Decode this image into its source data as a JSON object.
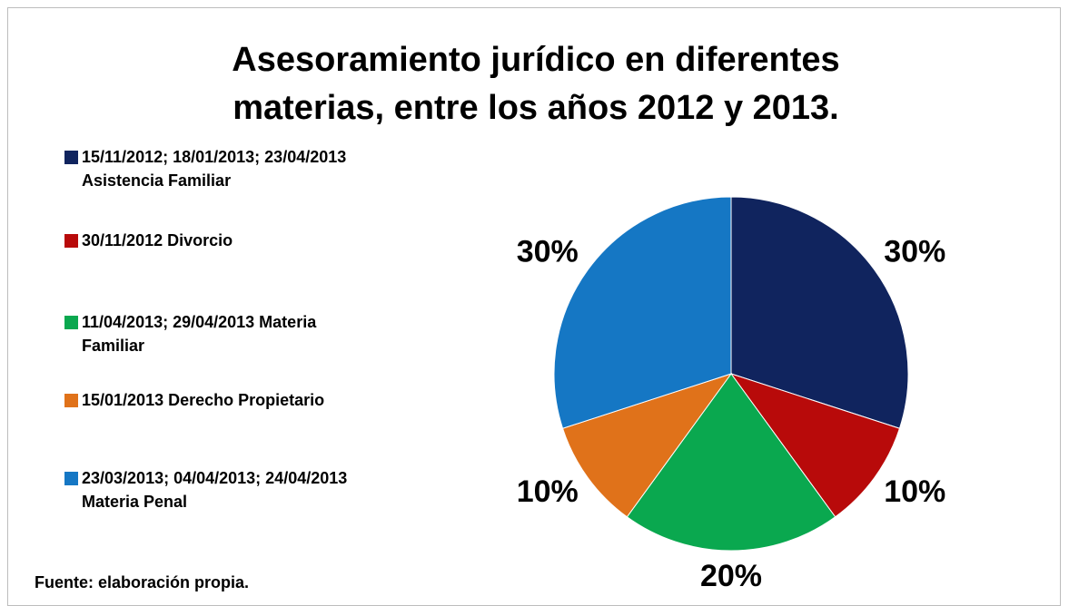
{
  "chart_data": {
    "type": "pie",
    "title": "Asesoramiento jurídico en diferentes materias, entre los años 2012 y 2013.",
    "categories": [
      "15/11/2012; 18/01/2013; 23/04/2013 Asistencia Familiar",
      "30/11/2012 Divorcio",
      "11/04/2013; 29/04/2013 Materia Familiar",
      "15/01/2013 Derecho Propietario",
      "23/03/2013; 04/04/2013; 24/04/2013 Materia Penal"
    ],
    "values": [
      30,
      10,
      20,
      10,
      30
    ],
    "value_labels": [
      "30%",
      "10%",
      "20%",
      "10%",
      "30%"
    ],
    "colors": [
      "#10245e",
      "#b80a0a",
      "#0aa84f",
      "#e0721a",
      "#1577c4"
    ],
    "source": "Fuente: elaboración propia."
  }
}
